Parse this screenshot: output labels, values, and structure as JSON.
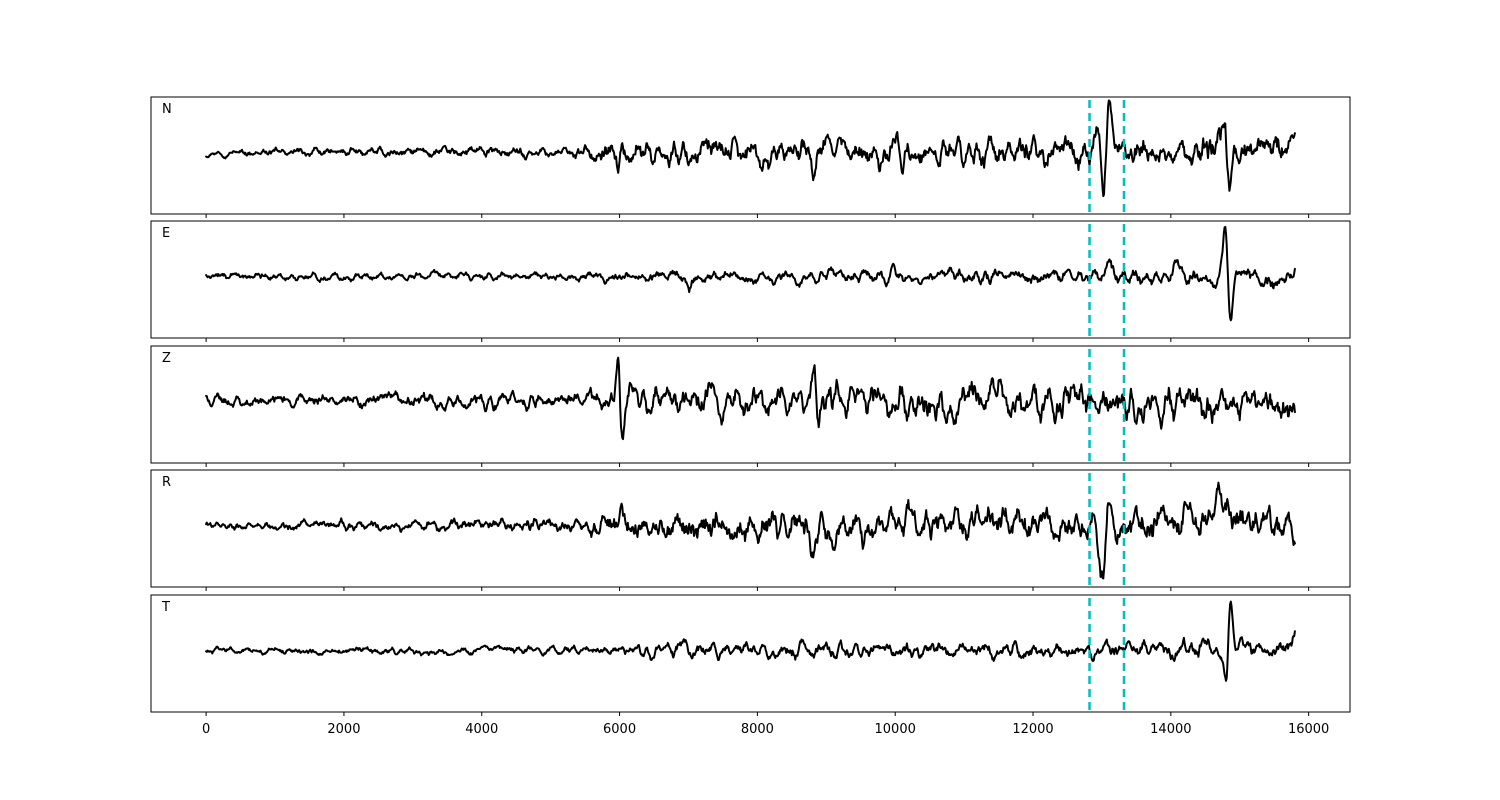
{
  "chart_data": {
    "type": "line",
    "title": "",
    "xlabel": "",
    "ylabel": "",
    "xlim": [
      -800,
      16600
    ],
    "ylim": [
      -1.0,
      1.0
    ],
    "x_ticks": [
      0,
      2000,
      4000,
      6000,
      8000,
      10000,
      12000,
      14000,
      16000
    ],
    "x_tick_labels": [
      "0",
      "2000",
      "4000",
      "6000",
      "8000",
      "10000",
      "12000",
      "14000",
      "16000"
    ],
    "trace_start": 0,
    "trace_end": 15800,
    "trace_color": "#000000",
    "marker_color": "#00bfbf",
    "markers_x": [
      12820,
      13320
    ],
    "grid": false,
    "panels": [
      {
        "name": "N",
        "label": "N",
        "noise": [
          [
            0,
            0.05
          ],
          [
            5500,
            0.1
          ],
          [
            5800,
            0.22
          ],
          [
            12600,
            0.25
          ],
          [
            15800,
            0.28
          ]
        ],
        "events": [
          {
            "x": 5990,
            "a": -0.4,
            "w": 40
          },
          {
            "x": 6030,
            "a": 0.35,
            "w": 40
          },
          {
            "x": 8820,
            "a": -0.35,
            "w": 45
          },
          {
            "x": 12950,
            "a": 0.3,
            "w": 60
          },
          {
            "x": 13020,
            "a": -0.88,
            "w": 55
          },
          {
            "x": 13100,
            "a": 0.55,
            "w": 60
          },
          {
            "x": 14780,
            "a": 0.75,
            "w": 45
          },
          {
            "x": 14850,
            "a": -0.55,
            "w": 50
          }
        ]
      },
      {
        "name": "E",
        "label": "E",
        "noise": [
          [
            0,
            0.06
          ],
          [
            5500,
            0.07
          ],
          [
            7000,
            0.1
          ],
          [
            12500,
            0.12
          ],
          [
            15800,
            0.15
          ]
        ],
        "events": [
          {
            "x": 7010,
            "a": -0.2,
            "w": 40
          },
          {
            "x": 9970,
            "a": 0.18,
            "w": 40
          },
          {
            "x": 13100,
            "a": 0.22,
            "w": 60
          },
          {
            "x": 14100,
            "a": 0.3,
            "w": 60
          },
          {
            "x": 14790,
            "a": 0.8,
            "w": 40
          },
          {
            "x": 14870,
            "a": -0.85,
            "w": 45
          },
          {
            "x": 15100,
            "a": 0.15,
            "w": 80
          }
        ]
      },
      {
        "name": "Z",
        "label": "Z",
        "noise": [
          [
            0,
            0.1
          ],
          [
            5500,
            0.14
          ],
          [
            5800,
            0.25
          ],
          [
            12500,
            0.3
          ],
          [
            15800,
            0.28
          ]
        ],
        "events": [
          {
            "x": 5980,
            "a": 0.7,
            "w": 40
          },
          {
            "x": 6040,
            "a": -0.9,
            "w": 40
          },
          {
            "x": 8830,
            "a": 0.55,
            "w": 40
          },
          {
            "x": 8880,
            "a": -0.45,
            "w": 40
          }
        ]
      },
      {
        "name": "R",
        "label": "R",
        "noise": [
          [
            0,
            0.07
          ],
          [
            5500,
            0.12
          ],
          [
            5800,
            0.26
          ],
          [
            12600,
            0.28
          ],
          [
            15800,
            0.32
          ]
        ],
        "events": [
          {
            "x": 5980,
            "a": -0.45,
            "w": 40
          },
          {
            "x": 6020,
            "a": 0.35,
            "w": 40
          },
          {
            "x": 8810,
            "a": -0.4,
            "w": 45
          },
          {
            "x": 12980,
            "a": -0.3,
            "w": 50
          },
          {
            "x": 13030,
            "a": -0.85,
            "w": 45
          },
          {
            "x": 13090,
            "a": 0.7,
            "w": 50
          },
          {
            "x": 14700,
            "a": 0.45,
            "w": 60
          }
        ]
      },
      {
        "name": "T",
        "label": "T",
        "noise": [
          [
            0,
            0.05
          ],
          [
            5500,
            0.07
          ],
          [
            7000,
            0.12
          ],
          [
            12500,
            0.12
          ],
          [
            15800,
            0.15
          ]
        ],
        "events": [
          {
            "x": 6900,
            "a": 0.15,
            "w": 40
          },
          {
            "x": 9950,
            "a": -0.12,
            "w": 40
          },
          {
            "x": 14480,
            "a": 0.2,
            "w": 60
          },
          {
            "x": 14810,
            "a": -0.8,
            "w": 40
          },
          {
            "x": 14860,
            "a": 0.85,
            "w": 45
          },
          {
            "x": 15780,
            "a": 0.18,
            "w": 60
          }
        ]
      }
    ]
  }
}
